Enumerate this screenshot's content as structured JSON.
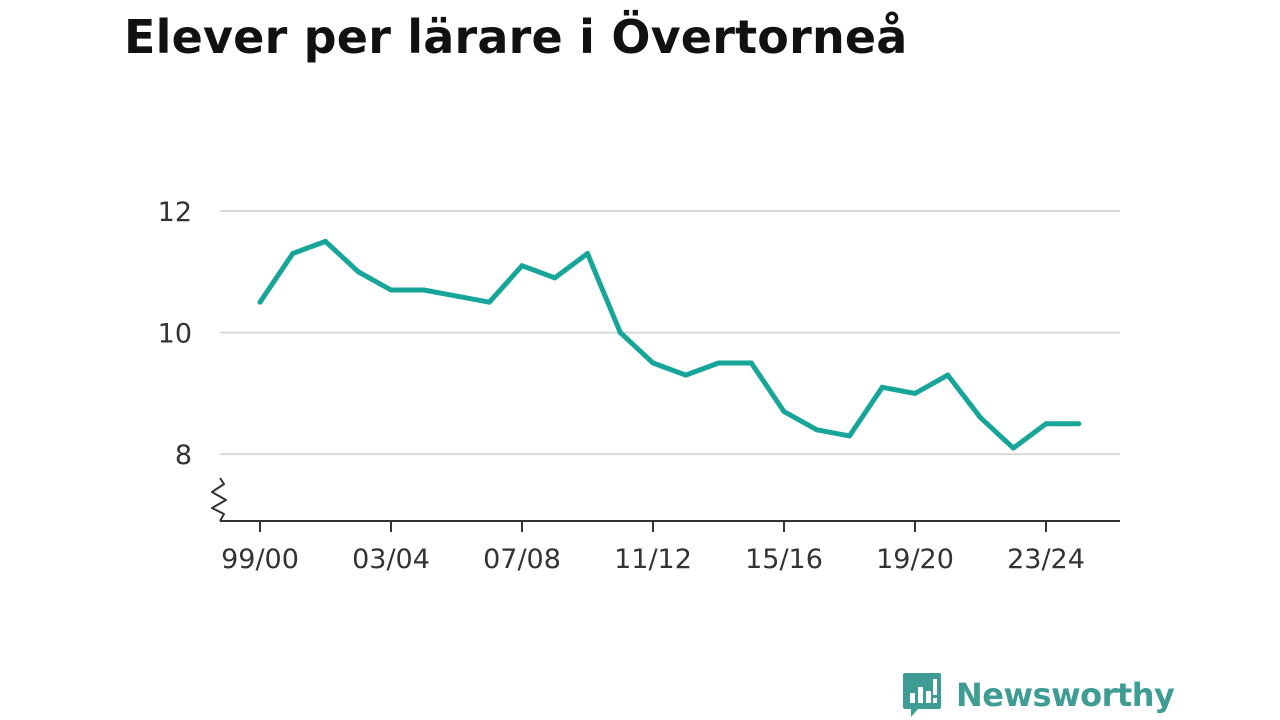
{
  "title": "Elever per lärare i Övertorneå",
  "brand": {
    "name": "Newsworthy",
    "icon": "bar-chart-speech-bubble-icon",
    "color": "#3f9c95"
  },
  "colors": {
    "line": "#17a59a",
    "grid": "#d9d9d9",
    "axis": "#333333"
  },
  "chart_data": {
    "type": "line",
    "title": "Elever per lärare i Övertorneå",
    "xlabel": "",
    "ylabel": "",
    "x": [
      "99/00",
      "00/01",
      "01/02",
      "02/03",
      "03/04",
      "04/05",
      "05/06",
      "06/07",
      "07/08",
      "08/09",
      "09/10",
      "10/11",
      "11/12",
      "12/13",
      "13/14",
      "14/15",
      "15/16",
      "16/17",
      "17/18",
      "18/19",
      "19/20",
      "20/21",
      "21/22",
      "22/23",
      "23/24",
      "24/25"
    ],
    "x_tick_labels": [
      "99/00",
      "03/04",
      "07/08",
      "11/12",
      "15/16",
      "19/20",
      "23/24"
    ],
    "y_tick_labels": [
      "8",
      "10",
      "12"
    ],
    "ylim": [
      6.9,
      12.0
    ],
    "y_axis_break": true,
    "grid": "horizontal",
    "legend": "none",
    "series": [
      {
        "values": [
          10.5,
          11.3,
          11.5,
          11.0,
          10.7,
          10.7,
          10.6,
          10.5,
          11.1,
          10.9,
          11.3,
          10.0,
          9.5,
          9.3,
          9.5,
          9.5,
          8.7,
          8.4,
          8.3,
          9.1,
          9.0,
          9.3,
          8.6,
          8.1,
          8.5,
          8.5
        ]
      }
    ]
  }
}
